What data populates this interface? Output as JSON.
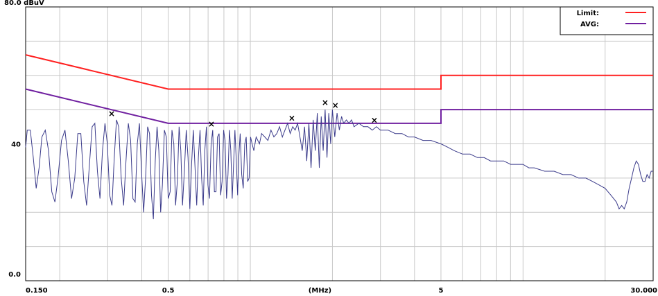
{
  "chart_data": {
    "type": "line",
    "title": "",
    "y_top_label": "80.0 dBuV",
    "xlabel": "(MHz)",
    "ylabel": "",
    "x_scale": "log",
    "xlim": [
      0.15,
      30
    ],
    "ylim": [
      0,
      80
    ],
    "grid": true,
    "legend_position": "top-right",
    "x_tick_labels": [
      {
        "value": 0.15,
        "label": "0.150"
      },
      {
        "value": 0.5,
        "label": "0.5"
      },
      {
        "value": 1.8,
        "label": "(MHz)"
      },
      {
        "value": 5,
        "label": "5"
      },
      {
        "value": 30,
        "label": "30.000"
      }
    ],
    "y_tick_labels": [
      {
        "value": 0,
        "label": "0.0"
      },
      {
        "value": 40,
        "label": "40"
      }
    ],
    "colors": {
      "limit": "#ff2020",
      "avg": "#7020a0",
      "trace": "#3a3a8a",
      "grid": "#c8c8c8"
    },
    "series": [
      {
        "name": "Limit:",
        "color": "#ff2020",
        "points": [
          [
            0.15,
            66
          ],
          [
            0.5,
            56
          ],
          [
            5,
            56
          ],
          [
            5,
            60
          ],
          [
            30,
            60
          ]
        ]
      },
      {
        "name": "AVG:",
        "color": "#7020a0",
        "points": [
          [
            0.15,
            56
          ],
          [
            0.5,
            46
          ],
          [
            5,
            46
          ],
          [
            5,
            50
          ],
          [
            30,
            50
          ]
        ]
      },
      {
        "name": "",
        "color": "#3a3a8a",
        "points": [
          [
            0.15,
            39
          ],
          [
            0.152,
            44
          ],
          [
            0.156,
            44
          ],
          [
            0.16,
            36
          ],
          [
            0.164,
            27
          ],
          [
            0.168,
            33
          ],
          [
            0.172,
            42
          ],
          [
            0.177,
            44
          ],
          [
            0.182,
            38
          ],
          [
            0.187,
            26
          ],
          [
            0.192,
            23
          ],
          [
            0.197,
            30
          ],
          [
            0.203,
            41
          ],
          [
            0.209,
            44
          ],
          [
            0.215,
            35
          ],
          [
            0.221,
            24
          ],
          [
            0.227,
            30
          ],
          [
            0.233,
            43
          ],
          [
            0.239,
            43
          ],
          [
            0.245,
            29
          ],
          [
            0.251,
            22
          ],
          [
            0.257,
            34
          ],
          [
            0.263,
            45
          ],
          [
            0.269,
            46
          ],
          [
            0.275,
            32
          ],
          [
            0.281,
            24
          ],
          [
            0.287,
            38
          ],
          [
            0.293,
            46
          ],
          [
            0.299,
            40
          ],
          [
            0.305,
            25
          ],
          [
            0.311,
            22
          ],
          [
            0.317,
            36
          ],
          [
            0.323,
            47
          ],
          [
            0.329,
            45
          ],
          [
            0.336,
            30
          ],
          [
            0.343,
            22
          ],
          [
            0.35,
            35
          ],
          [
            0.357,
            46
          ],
          [
            0.364,
            41
          ],
          [
            0.371,
            24
          ],
          [
            0.378,
            23
          ],
          [
            0.385,
            40
          ],
          [
            0.392,
            46
          ],
          [
            0.399,
            32
          ],
          [
            0.406,
            20
          ],
          [
            0.413,
            30
          ],
          [
            0.42,
            45
          ],
          [
            0.427,
            43
          ],
          [
            0.434,
            25
          ],
          [
            0.441,
            18
          ],
          [
            0.448,
            35
          ],
          [
            0.455,
            45
          ],
          [
            0.462,
            38
          ],
          [
            0.469,
            20
          ],
          [
            0.476,
            28
          ],
          [
            0.484,
            44
          ],
          [
            0.492,
            42
          ],
          [
            0.5,
            24
          ],
          [
            0.508,
            26
          ],
          [
            0.516,
            44
          ],
          [
            0.524,
            40
          ],
          [
            0.532,
            22
          ],
          [
            0.54,
            29
          ],
          [
            0.548,
            45
          ],
          [
            0.556,
            38
          ],
          [
            0.564,
            22
          ],
          [
            0.573,
            32
          ],
          [
            0.582,
            44
          ],
          [
            0.591,
            36
          ],
          [
            0.6,
            21
          ],
          [
            0.609,
            34
          ],
          [
            0.618,
            44
          ],
          [
            0.627,
            33
          ],
          [
            0.636,
            22
          ],
          [
            0.645,
            36
          ],
          [
            0.654,
            44
          ],
          [
            0.663,
            30
          ],
          [
            0.672,
            22
          ],
          [
            0.681,
            38
          ],
          [
            0.69,
            45
          ],
          [
            0.699,
            28
          ],
          [
            0.708,
            24
          ],
          [
            0.718,
            40
          ],
          [
            0.728,
            44
          ],
          [
            0.738,
            26
          ],
          [
            0.748,
            26
          ],
          [
            0.758,
            42
          ],
          [
            0.768,
            43
          ],
          [
            0.778,
            25
          ],
          [
            0.788,
            29
          ],
          [
            0.798,
            44
          ],
          [
            0.808,
            41
          ],
          [
            0.818,
            24
          ],
          [
            0.828,
            31
          ],
          [
            0.838,
            44
          ],
          [
            0.848,
            38
          ],
          [
            0.858,
            24
          ],
          [
            0.868,
            34
          ],
          [
            0.878,
            44
          ],
          [
            0.888,
            35
          ],
          [
            0.898,
            25
          ],
          [
            0.908,
            37
          ],
          [
            0.918,
            43
          ],
          [
            0.93,
            31
          ],
          [
            0.942,
            27
          ],
          [
            0.954,
            40
          ],
          [
            0.966,
            42
          ],
          [
            0.978,
            29
          ],
          [
            0.99,
            30
          ],
          [
            1.002,
            42
          ],
          [
            1.015,
            40
          ],
          [
            1.03,
            38
          ],
          [
            1.05,
            42
          ],
          [
            1.08,
            40
          ],
          [
            1.1,
            43
          ],
          [
            1.13,
            42
          ],
          [
            1.16,
            41
          ],
          [
            1.19,
            44
          ],
          [
            1.22,
            42
          ],
          [
            1.25,
            43
          ],
          [
            1.28,
            45
          ],
          [
            1.31,
            42
          ],
          [
            1.34,
            44
          ],
          [
            1.37,
            46
          ],
          [
            1.4,
            43
          ],
          [
            1.43,
            45
          ],
          [
            1.46,
            44
          ],
          [
            1.49,
            46
          ],
          [
            1.52,
            42
          ],
          [
            1.55,
            38
          ],
          [
            1.58,
            45
          ],
          [
            1.61,
            35
          ],
          [
            1.64,
            46
          ],
          [
            1.67,
            33
          ],
          [
            1.7,
            47
          ],
          [
            1.73,
            38
          ],
          [
            1.76,
            49
          ],
          [
            1.79,
            33
          ],
          [
            1.82,
            48
          ],
          [
            1.85,
            38
          ],
          [
            1.88,
            50
          ],
          [
            1.91,
            36
          ],
          [
            1.94,
            49
          ],
          [
            1.97,
            40
          ],
          [
            2.0,
            50
          ],
          [
            2.04,
            42
          ],
          [
            2.08,
            49
          ],
          [
            2.12,
            44
          ],
          [
            2.16,
            48
          ],
          [
            2.2,
            46
          ],
          [
            2.25,
            47
          ],
          [
            2.3,
            46
          ],
          [
            2.35,
            47
          ],
          [
            2.4,
            45
          ],
          [
            2.5,
            46
          ],
          [
            2.6,
            45
          ],
          [
            2.7,
            45
          ],
          [
            2.8,
            44
          ],
          [
            2.9,
            45
          ],
          [
            3.0,
            44
          ],
          [
            3.2,
            44
          ],
          [
            3.4,
            43
          ],
          [
            3.6,
            43
          ],
          [
            3.8,
            42
          ],
          [
            4.0,
            42
          ],
          [
            4.3,
            41
          ],
          [
            4.6,
            41
          ],
          [
            5.0,
            40
          ],
          [
            5.3,
            39
          ],
          [
            5.6,
            38
          ],
          [
            6.0,
            37
          ],
          [
            6.4,
            37
          ],
          [
            6.8,
            36
          ],
          [
            7.2,
            36
          ],
          [
            7.6,
            35
          ],
          [
            8.0,
            35
          ],
          [
            8.5,
            35
          ],
          [
            9.0,
            34
          ],
          [
            9.5,
            34
          ],
          [
            10.0,
            34
          ],
          [
            10.5,
            33
          ],
          [
            11.0,
            33
          ],
          [
            12.0,
            32
          ],
          [
            13.0,
            32
          ],
          [
            14.0,
            31
          ],
          [
            15.0,
            31
          ],
          [
            16.0,
            30
          ],
          [
            17.0,
            30
          ],
          [
            18.0,
            29
          ],
          [
            19.0,
            28
          ],
          [
            20.0,
            27
          ],
          [
            21.0,
            25
          ],
          [
            22.0,
            23
          ],
          [
            22.5,
            21
          ],
          [
            23.0,
            22
          ],
          [
            23.5,
            21
          ],
          [
            24.0,
            23
          ],
          [
            24.5,
            27
          ],
          [
            25.0,
            30
          ],
          [
            25.5,
            33
          ],
          [
            26.0,
            35
          ],
          [
            26.5,
            34
          ],
          [
            27.0,
            31
          ],
          [
            27.5,
            29
          ],
          [
            28.0,
            29
          ],
          [
            28.5,
            31
          ],
          [
            29.0,
            30
          ],
          [
            29.5,
            32
          ],
          [
            30.0,
            32
          ]
        ]
      }
    ],
    "markers": [
      [
        0.31,
        48.8
      ],
      [
        0.72,
        45.8
      ],
      [
        1.42,
        47.5
      ],
      [
        1.88,
        52.1
      ],
      [
        2.05,
        51.2
      ],
      [
        2.85,
        46.9
      ]
    ],
    "legend": [
      {
        "label": "Limit:",
        "color": "#ff2020"
      },
      {
        "label": "AVG:",
        "color": "#7020a0"
      }
    ]
  }
}
